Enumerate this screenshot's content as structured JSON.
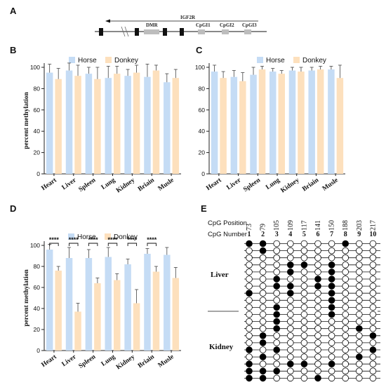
{
  "panel_labels": {
    "a": "A",
    "b": "B",
    "c": "C",
    "d": "D",
    "e": "E"
  },
  "gene_map": {
    "gene_label": "IGF2R",
    "region_labels": [
      "DMR",
      "CpGI1",
      "CpGI2",
      "CpGI3"
    ]
  },
  "colors": {
    "horse": "#c5dcf5",
    "donkey": "#fde0bd",
    "axis": "#222222"
  },
  "chart_data": [
    {
      "id": "B",
      "type": "bar",
      "ylabel": "percent methylation",
      "ylim": [
        0,
        100
      ],
      "yticks": [
        0,
        20,
        40,
        60,
        80,
        100
      ],
      "categories": [
        "Heart",
        "Liver",
        "Spleen",
        "Lung",
        "Kidney",
        "Briain",
        "Musle"
      ],
      "series": [
        {
          "name": "Horse",
          "values": [
            95,
            97,
            94,
            90,
            92,
            91,
            86
          ],
          "errors": [
            8,
            7,
            6,
            11,
            6,
            12,
            8
          ]
        },
        {
          "name": "Donkey",
          "values": [
            89,
            92,
            89,
            94,
            95,
            97,
            90
          ],
          "errors": [
            10,
            10,
            11,
            7,
            7,
            5,
            8
          ]
        }
      ],
      "legend_position": "top"
    },
    {
      "id": "C",
      "type": "bar",
      "ylabel": "",
      "ylim": [
        0,
        100
      ],
      "yticks": [
        0,
        20,
        40,
        60,
        80,
        100
      ],
      "categories": [
        "Heart",
        "Liver",
        "Spleen",
        "Lung",
        "Kidney",
        "Briain",
        "Musle"
      ],
      "series": [
        {
          "name": "Horse",
          "values": [
            96,
            91,
            93,
            96,
            97,
            97,
            98
          ],
          "errors": [
            6,
            6,
            7,
            3,
            3,
            3,
            3
          ]
        },
        {
          "name": "Donkey",
          "values": [
            90,
            87,
            98,
            94,
            96,
            98,
            90
          ],
          "errors": [
            6,
            8,
            3,
            3,
            4,
            3,
            12
          ]
        }
      ],
      "legend_position": "top"
    },
    {
      "id": "D",
      "type": "bar",
      "ylabel": "percent methylation",
      "ylim": [
        0,
        100
      ],
      "yticks": [
        0,
        20,
        40,
        60,
        80,
        100
      ],
      "categories": [
        "Heart",
        "Liver",
        "Spleen",
        "Lung",
        "Kidney",
        "Briain",
        "Musle"
      ],
      "series": [
        {
          "name": "Horse",
          "values": [
            96,
            88,
            88,
            89,
            82,
            92,
            91
          ],
          "errors": [
            5,
            10,
            8,
            9,
            5,
            5,
            7
          ]
        },
        {
          "name": "Donkey",
          "values": [
            76,
            37,
            64,
            67,
            45,
            75,
            69
          ],
          "errors": [
            4,
            8,
            5,
            6,
            13,
            5,
            10
          ]
        }
      ],
      "significance": [
        "****",
        "****",
        "****",
        "****",
        "****",
        "****",
        ""
      ],
      "legend_position": "top"
    }
  ],
  "methylation_map": {
    "position_header": "CpG Position",
    "number_header": "CpG Number",
    "positions": [
      "73",
      "79",
      "105",
      "109",
      "117",
      "141",
      "150",
      "188",
      "203",
      "217"
    ],
    "numbers": [
      "1",
      "2",
      "3",
      "4",
      "5",
      "6",
      "7",
      "8",
      "9",
      "10"
    ],
    "tissues": [
      "Liver",
      "Kidney"
    ],
    "liver_rows": [
      [
        1,
        1,
        0,
        0,
        0,
        0,
        0,
        1,
        0,
        0
      ],
      [
        0,
        1,
        0,
        0,
        0,
        0,
        0,
        0,
        0,
        0
      ],
      [
        0,
        0,
        0,
        0,
        0,
        0,
        0,
        0,
        0,
        0
      ],
      [
        0,
        0,
        0,
        1,
        1,
        0,
        1,
        0,
        0,
        0
      ],
      [
        0,
        0,
        0,
        1,
        0,
        0,
        1,
        0,
        0,
        0
      ],
      [
        0,
        0,
        1,
        0,
        0,
        1,
        1,
        0,
        0,
        0
      ],
      [
        0,
        0,
        1,
        1,
        0,
        1,
        1,
        0,
        0,
        0
      ],
      [
        1,
        0,
        0,
        1,
        0,
        0,
        1,
        0,
        0,
        0
      ],
      [
        0,
        0,
        0,
        0,
        0,
        0,
        1,
        0,
        0,
        0
      ],
      [
        0,
        0,
        1,
        0,
        0,
        0,
        1,
        0,
        0,
        0
      ]
    ],
    "kidney_rows": [
      [
        0,
        0,
        1,
        0,
        0,
        0,
        1,
        0,
        0,
        0
      ],
      [
        0,
        0,
        1,
        0,
        0,
        0,
        0,
        0,
        0,
        0
      ],
      [
        0,
        0,
        1,
        0,
        0,
        0,
        0,
        0,
        1,
        0
      ],
      [
        0,
        1,
        0,
        0,
        0,
        0,
        0,
        0,
        0,
        1
      ],
      [
        0,
        1,
        0,
        0,
        0,
        0,
        0,
        0,
        0,
        0
      ],
      [
        1,
        0,
        1,
        0,
        0,
        0,
        0,
        0,
        0,
        1
      ],
      [
        0,
        1,
        0,
        0,
        0,
        0,
        0,
        0,
        1,
        0
      ],
      [
        1,
        0,
        0,
        1,
        1,
        0,
        1,
        0,
        0,
        0
      ],
      [
        1,
        1,
        1,
        0,
        0,
        0,
        0,
        0,
        0,
        0
      ],
      [
        1,
        1,
        0,
        0,
        0,
        1,
        0,
        0,
        0,
        0
      ]
    ]
  }
}
